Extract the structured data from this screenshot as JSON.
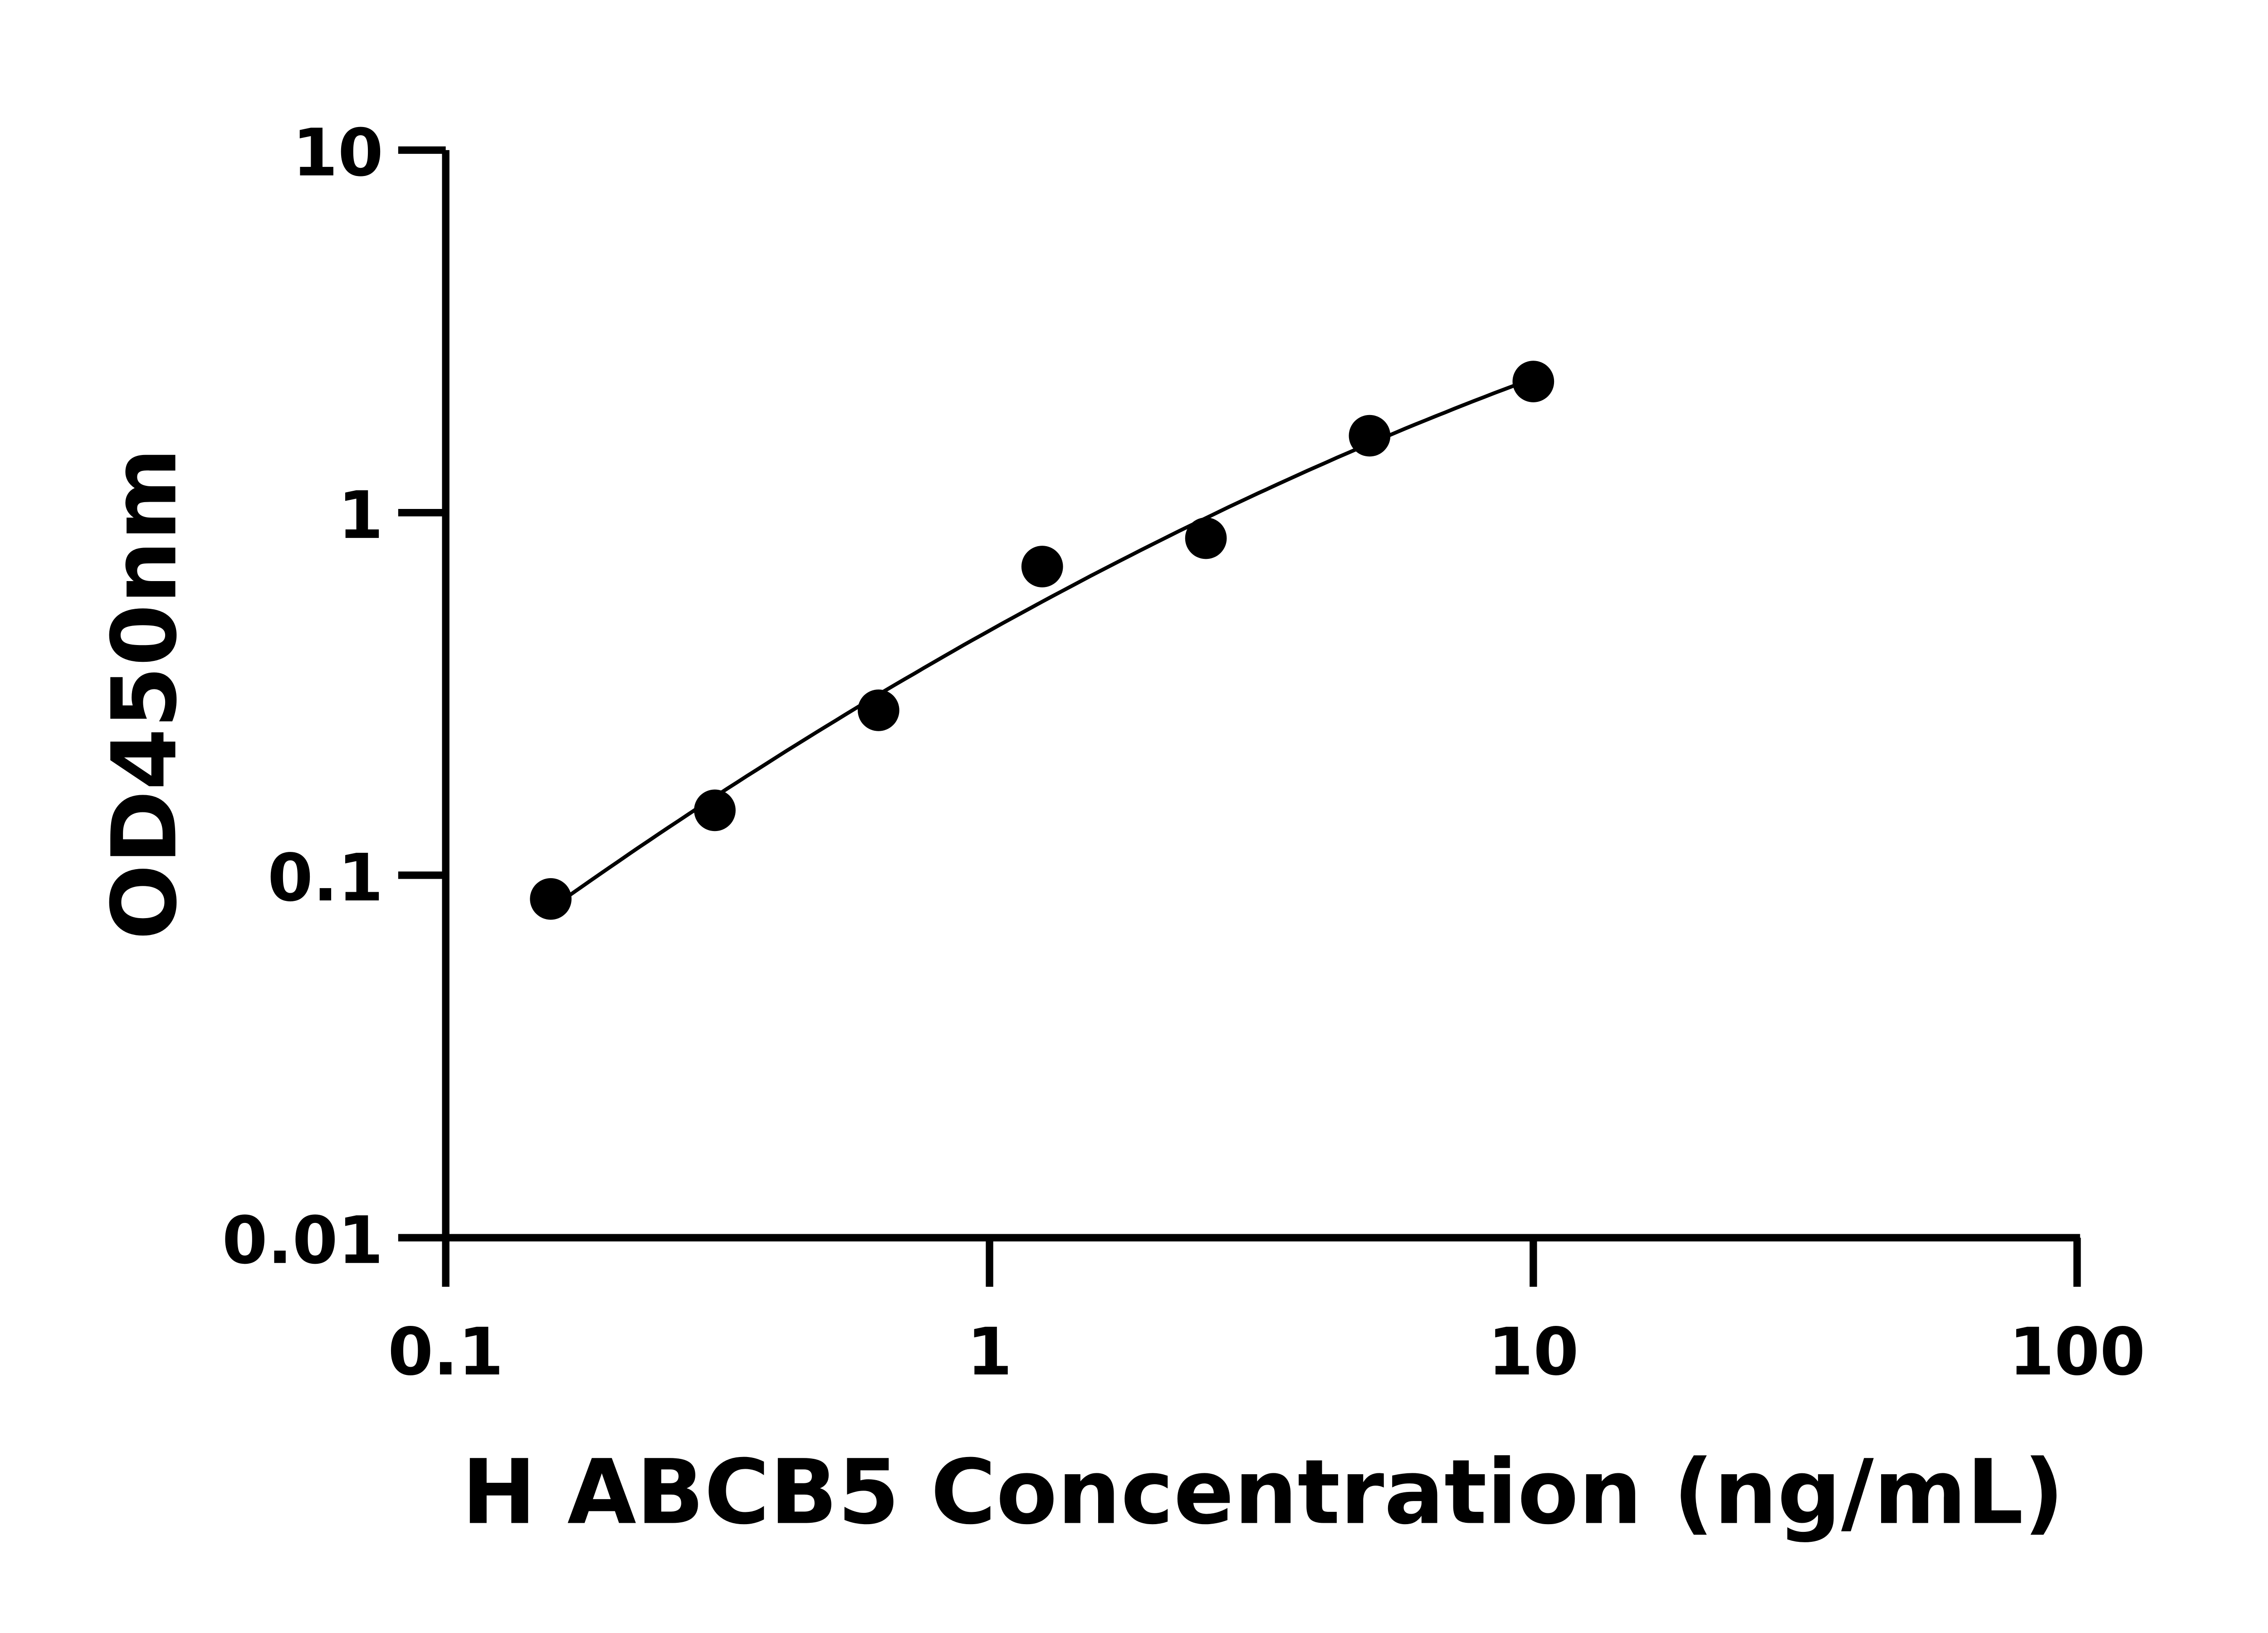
{
  "chart_data": {
    "type": "scatter",
    "xlabel": "H ABCB5 Concentration (ng/mL)",
    "ylabel": "OD450nm",
    "x_scale": "log",
    "y_scale": "log",
    "xlim": [
      0.1,
      100
    ],
    "ylim": [
      0.01,
      10
    ],
    "x_ticks": [
      "0.1",
      "1",
      "10",
      "100"
    ],
    "y_ticks": [
      "0.01",
      "0.1",
      "1",
      "10"
    ],
    "grid": false,
    "series": [
      {
        "x": [
          0.156,
          0.3125,
          0.625,
          1.25,
          2.5,
          5,
          10
        ],
        "y": [
          0.086,
          0.151,
          0.285,
          0.71,
          0.85,
          1.63,
          2.3
        ],
        "marker": "circle",
        "fit_curve": true,
        "color": "#000000"
      }
    ]
  }
}
